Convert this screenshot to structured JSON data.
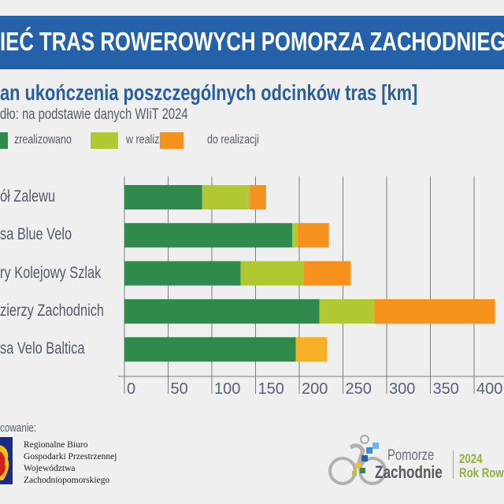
{
  "header": {
    "title": "IEĆ TRAS ROWEROWYCH POMORZA ZACHODNIEGO"
  },
  "subtitle": "an ukończenia poszczególnych odcinków tras [km]",
  "source": "dło: na podstawie danych WIiT 2024",
  "colors": {
    "zrealizowano": "#2f8a4c",
    "w_realizacji": "#b2c832",
    "do_realizacji": "#f5921e",
    "do_realizacji_alt": "#f5b027",
    "banner": "#2461a8"
  },
  "chart_data": {
    "type": "bar",
    "orientation": "horizontal",
    "stacked": true,
    "categories": [
      "ół Zalewu",
      "sa Blue Velo",
      "ry Kolejowy Szlak",
      "zierzy Zachodnich",
      "sa Velo Baltica"
    ],
    "series": [
      {
        "name": "zrealizowano",
        "values": [
          89,
          192,
          133,
          223,
          196
        ]
      },
      {
        "name": "w realizacji",
        "values": [
          54,
          6,
          72,
          63,
          0
        ]
      },
      {
        "name": "do realizacji",
        "values": [
          19,
          36,
          54,
          138,
          36
        ]
      }
    ],
    "xlim": [
      0,
      420
    ],
    "xticks": [
      "0",
      "50",
      "100",
      "150",
      "200",
      "250",
      "300",
      "350",
      "400"
    ],
    "xtick_values": [
      0,
      50,
      100,
      150,
      200,
      250,
      300,
      350,
      400
    ],
    "grid": true,
    "legend": "top-left",
    "title": "an ukończenia poszczególnych odcinków tras [km]",
    "xlabel": "",
    "ylabel": ""
  },
  "footer": {
    "caption": "cowanie:",
    "org_lines": [
      "Regionalne Biuro",
      "Gospodarki Przestrzennej",
      "Województwa",
      "Zachodniopomorskiego"
    ],
    "logo_line1": "Pomorze",
    "logo_line2": "Zachodnie",
    "logo_year": "2024",
    "logo_tagline": "Rok Rowe"
  }
}
